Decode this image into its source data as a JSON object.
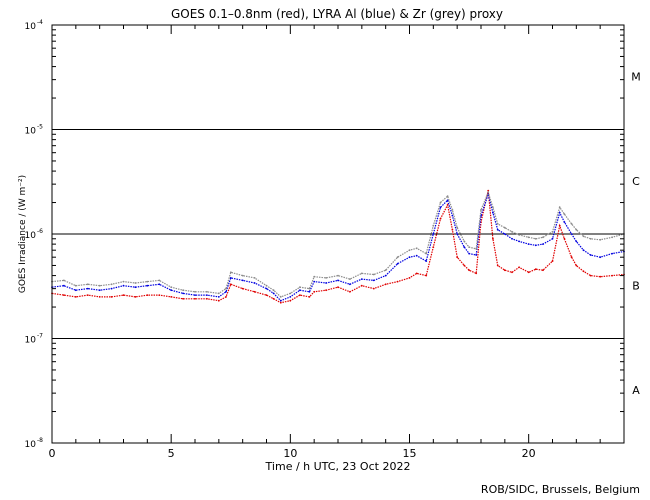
{
  "chart_data": {
    "type": "line",
    "title": "GOES 0.1–0.8nm (red), LYRA Al (blue) & Zr (grey) proxy",
    "xlabel": "Time / h UTC, 23 Oct 2022",
    "ylabel": "GOES Irradiance / (W m⁻²)",
    "xlim": [
      0,
      24
    ],
    "ylim": [
      1e-08,
      0.0001
    ],
    "yscale": "log",
    "x_ticks": [
      0,
      5,
      10,
      15,
      20
    ],
    "y_ticks": [
      {
        "value": 1e-08,
        "base": "10",
        "exp": "-8"
      },
      {
        "value": 1e-07,
        "base": "10",
        "exp": "-7"
      },
      {
        "value": 1e-06,
        "base": "10",
        "exp": "-6"
      },
      {
        "value": 1e-05,
        "base": "10",
        "exp": "-5"
      },
      {
        "value": 0.0001,
        "base": "10",
        "exp": "-4"
      }
    ],
    "flare_classes": [
      {
        "label": "A",
        "value": 3.2e-08
      },
      {
        "label": "B",
        "value": 3.2e-07
      },
      {
        "label": "C",
        "value": 3.2e-06
      },
      {
        "label": "M",
        "value": 3.2e-05
      }
    ],
    "threshold_lines": [
      1e-07,
      1e-06,
      1e-05
    ],
    "series": [
      {
        "color": "#e00000",
        "x": [
          0,
          0.5,
          1,
          1.5,
          2,
          2.5,
          3,
          3.5,
          4,
          4.5,
          5,
          5.5,
          6,
          6.5,
          7,
          7.3,
          7.5,
          8,
          8.5,
          9,
          9.3,
          9.6,
          10,
          10.4,
          10.8,
          11,
          11.5,
          12,
          12.5,
          13,
          13.5,
          14,
          14.5,
          15,
          15.3,
          15.7,
          16,
          16.3,
          16.6,
          16.8,
          17,
          17.3,
          17.5,
          17.8,
          18,
          18.3,
          18.5,
          18.7,
          19,
          19.3,
          19.6,
          20,
          20.3,
          20.6,
          21,
          21.3,
          21.5,
          21.8,
          22,
          22.3,
          22.6,
          23,
          23.5,
          24
        ],
        "y": [
          2.7e-07,
          2.6e-07,
          2.5e-07,
          2.6e-07,
          2.5e-07,
          2.5e-07,
          2.6e-07,
          2.5e-07,
          2.6e-07,
          2.6e-07,
          2.5e-07,
          2.4e-07,
          2.4e-07,
          2.4e-07,
          2.3e-07,
          2.5e-07,
          3.3e-07,
          3e-07,
          2.8e-07,
          2.6e-07,
          2.4e-07,
          2.2e-07,
          2.3e-07,
          2.6e-07,
          2.5e-07,
          2.8e-07,
          2.9e-07,
          3.1e-07,
          2.8e-07,
          3.2e-07,
          3e-07,
          3.3e-07,
          3.5e-07,
          3.8e-07,
          4.2e-07,
          4e-07,
          7.5e-07,
          1.4e-06,
          1.9e-06,
          1.1e-06,
          6e-07,
          5e-07,
          4.5e-07,
          4.2e-07,
          1.3e-06,
          2.6e-06,
          9e-07,
          5e-07,
          4.5e-07,
          4.3e-07,
          4.8e-07,
          4.3e-07,
          4.6e-07,
          4.5e-07,
          5.5e-07,
          1.2e-06,
          9e-07,
          6e-07,
          5e-07,
          4.4e-07,
          4e-07,
          3.9e-07,
          4e-07,
          4.1e-07
        ]
      },
      {
        "color": "#0000e0",
        "x": [
          0,
          0.5,
          1,
          1.5,
          2,
          2.5,
          3,
          3.5,
          4,
          4.5,
          5,
          5.5,
          6,
          6.5,
          7,
          7.3,
          7.5,
          8,
          8.5,
          9,
          9.3,
          9.6,
          10,
          10.4,
          10.8,
          11,
          11.5,
          12,
          12.5,
          13,
          13.5,
          14,
          14.5,
          15,
          15.3,
          15.7,
          16,
          16.3,
          16.6,
          16.8,
          17,
          17.3,
          17.5,
          17.8,
          18,
          18.3,
          18.5,
          18.7,
          19,
          19.3,
          19.6,
          20,
          20.3,
          20.6,
          21,
          21.3,
          21.5,
          21.8,
          22,
          22.3,
          22.6,
          23,
          23.5,
          24
        ],
        "y": [
          3.1e-07,
          3.2e-07,
          2.9e-07,
          3e-07,
          2.9e-07,
          3e-07,
          3.2e-07,
          3.1e-07,
          3.2e-07,
          3.3e-07,
          2.9e-07,
          2.7e-07,
          2.6e-07,
          2.6e-07,
          2.5e-07,
          2.8e-07,
          3.8e-07,
          3.6e-07,
          3.4e-07,
          3e-07,
          2.7e-07,
          2.3e-07,
          2.5e-07,
          2.9e-07,
          2.8e-07,
          3.5e-07,
          3.4e-07,
          3.6e-07,
          3.3e-07,
          3.7e-07,
          3.6e-07,
          4e-07,
          5.2e-07,
          6e-07,
          6.2e-07,
          5.5e-07,
          1e-06,
          1.8e-06,
          2.1e-06,
          1.5e-06,
          1e-06,
          7.5e-07,
          6.5e-07,
          6.3e-07,
          1.5e-06,
          2.4e-06,
          1.6e-06,
          1.1e-06,
          1e-06,
          9e-07,
          8.5e-07,
          8e-07,
          7.8e-07,
          8e-07,
          9e-07,
          1.6e-06,
          1.3e-06,
          1e-06,
          8.5e-07,
          7e-07,
          6.3e-07,
          6e-07,
          6.5e-07,
          6.8e-07
        ]
      },
      {
        "color": "#8c8c8c",
        "x": [
          0,
          0.5,
          1,
          1.5,
          2,
          2.5,
          3,
          3.5,
          4,
          4.5,
          5,
          5.5,
          6,
          6.5,
          7,
          7.3,
          7.5,
          8,
          8.5,
          9,
          9.3,
          9.6,
          10,
          10.4,
          10.8,
          11,
          11.5,
          12,
          12.5,
          13,
          13.5,
          14,
          14.5,
          15,
          15.3,
          15.7,
          16,
          16.3,
          16.6,
          16.8,
          17,
          17.3,
          17.5,
          17.8,
          18,
          18.3,
          18.5,
          18.7,
          19,
          19.3,
          19.6,
          20,
          20.3,
          20.6,
          21,
          21.3,
          21.5,
          21.8,
          22,
          22.3,
          22.6,
          23,
          23.5,
          24
        ],
        "y": [
          3.5e-07,
          3.6e-07,
          3.2e-07,
          3.3e-07,
          3.2e-07,
          3.3e-07,
          3.5e-07,
          3.4e-07,
          3.5e-07,
          3.6e-07,
          3.1e-07,
          2.9e-07,
          2.8e-07,
          2.8e-07,
          2.7e-07,
          3e-07,
          4.3e-07,
          4e-07,
          3.8e-07,
          3.2e-07,
          2.9e-07,
          2.5e-07,
          2.7e-07,
          3.1e-07,
          3e-07,
          3.9e-07,
          3.8e-07,
          4e-07,
          3.7e-07,
          4.2e-07,
          4.1e-07,
          4.5e-07,
          6e-07,
          7e-07,
          7.3e-07,
          6.5e-07,
          1.2e-06,
          2e-06,
          2.3e-06,
          1.7e-06,
          1.15e-06,
          8.5e-07,
          7.5e-07,
          7.2e-07,
          1.7e-06,
          2.5e-06,
          1.8e-06,
          1.25e-06,
          1.15e-06,
          1.05e-06,
          9.8e-07,
          9.3e-07,
          9e-07,
          9.3e-07,
          1.05e-06,
          1.8e-06,
          1.55e-06,
          1.25e-06,
          1.1e-06,
          9.5e-07,
          9e-07,
          8.8e-07,
          9.3e-07,
          1e-06
        ]
      }
    ]
  },
  "footer": {
    "credit": "ROB/SIDC, Brussels, Belgium"
  }
}
